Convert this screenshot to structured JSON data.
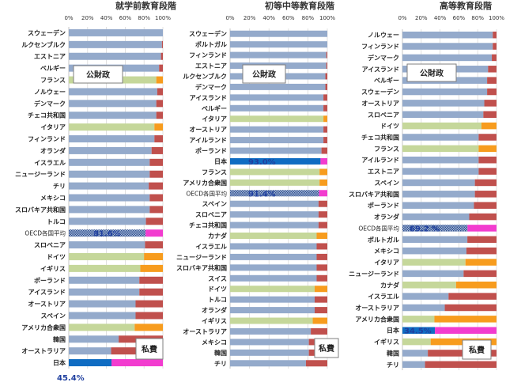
{
  "colors": {
    "public": "#94aacb",
    "private_other": "#c0504d",
    "public_highlight": "#c5d79a",
    "private_highlight": "#f79c1e",
    "japan_public": "#0f6cc2",
    "japan_private": "#f23ccf",
    "oecd_public": "#5f7fae",
    "oecd_private": "#f23ccf"
  },
  "chart_data": [
    {
      "type": "bar",
      "orientation": "horizontal-stacked",
      "title": "就学前教育段階",
      "xlim": [
        0,
        100
      ],
      "xticks": [
        "0%",
        "20%",
        "40%",
        "60%",
        "80%",
        "100%"
      ],
      "legend": {
        "public_label": "公財政",
        "private_label": "私費"
      },
      "categories": [
        "スウェーデン",
        "ルクセンブルク",
        "エストニア",
        "ベルギー",
        "フランス",
        "ノルウェー",
        "デンマーク",
        "チェコ共和国",
        "イタリア",
        "フィンランド",
        "オランダ",
        "イスラエル",
        "ニュージーランド",
        "チリ",
        "メキシコ",
        "スロバキア共和国",
        "トルコ",
        "OECD各国平均",
        "スロベニア",
        "ドイツ",
        "イギリス",
        "ポーランド",
        "アイスランド",
        "オーストリア",
        "スペイン",
        "アメリカ合衆国",
        "韓国",
        "オーストラリア",
        "日本"
      ],
      "highlight": [
        "normal",
        "normal",
        "normal",
        "normal",
        "green",
        "normal",
        "normal",
        "normal",
        "green",
        "normal",
        "normal",
        "normal",
        "normal",
        "normal",
        "normal",
        "normal",
        "normal",
        "oecd",
        "normal",
        "green",
        "green",
        "normal",
        "normal",
        "normal",
        "normal",
        "green",
        "normal",
        "normal",
        "japan"
      ],
      "series": [
        {
          "name": "公財政",
          "values": [
            100,
            99,
            98,
            96,
            93,
            94,
            93,
            93,
            91,
            91,
            88,
            86,
            86,
            85,
            86,
            86,
            82,
            81.6,
            81,
            80,
            76,
            75,
            75,
            71,
            71,
            70,
            53,
            45,
            45.4
          ]
        },
        {
          "name": "私費",
          "values": [
            0,
            1,
            2,
            4,
            7,
            6,
            7,
            7,
            9,
            9,
            12,
            14,
            14,
            15,
            14,
            14,
            18,
            18.4,
            19,
            20,
            24,
            25,
            25,
            29,
            29,
            30,
            47,
            55,
            54.6
          ]
        }
      ],
      "annotations": {
        "oecd": "81.6%",
        "japan": "45.4%"
      }
    },
    {
      "type": "bar",
      "orientation": "horizontal-stacked",
      "title": "初等中等教育段階",
      "xlim": [
        0,
        100
      ],
      "xticks": [
        "0%",
        "20%",
        "40%",
        "60%",
        "80%",
        "100%"
      ],
      "legend": {
        "public_label": "公財政",
        "private_label": "私費"
      },
      "categories": [
        "スウェーデン",
        "ポルトガル",
        "フィンランド",
        "エストニア",
        "ルクセンブルク",
        "デンマーク",
        "アイスランド",
        "ベルギー",
        "イタリア",
        "オーストリア",
        "アイルランド",
        "ポーランド",
        "日本",
        "フランス",
        "アメリカ合衆国",
        "OECD各国平均",
        "スペイン",
        "スロベニア",
        "チェコ共和国",
        "カナダ",
        "イスラエル",
        "ニュージーランド",
        "スロバキア共和国",
        "スイス",
        "ドイツ",
        "トルコ",
        "オランダ",
        "イギリス",
        "オーストラリア",
        "メキシコ",
        "韓国",
        "チリ"
      ],
      "highlight": [
        "normal",
        "normal",
        "normal",
        "normal",
        "normal",
        "normal",
        "normal",
        "normal",
        "green",
        "normal",
        "normal",
        "normal",
        "japan",
        "green",
        "green",
        "oecd",
        "normal",
        "normal",
        "normal",
        "green",
        "normal",
        "normal",
        "normal",
        "normal",
        "green",
        "normal",
        "normal",
        "green",
        "normal",
        "normal",
        "normal",
        "normal"
      ],
      "series": [
        {
          "name": "公財政",
          "values": [
            100,
            100,
            99,
            99,
            98,
            98,
            96,
            96,
            96,
            96,
            96,
            94,
            93.0,
            92,
            92,
            91.4,
            91,
            91,
            91,
            89,
            89,
            89,
            89,
            89,
            87,
            87,
            87,
            85,
            83,
            81,
            81,
            78
          ]
        },
        {
          "name": "私費",
          "values": [
            0,
            0,
            1,
            1,
            2,
            2,
            4,
            4,
            4,
            4,
            4,
            6,
            7.0,
            8,
            8,
            8.6,
            9,
            9,
            9,
            11,
            11,
            11,
            11,
            11,
            13,
            13,
            13,
            15,
            17,
            19,
            19,
            22
          ]
        }
      ],
      "annotations": {
        "oecd": "91.4%",
        "japan": "93.0%"
      }
    },
    {
      "type": "bar",
      "orientation": "horizontal-stacked",
      "title": "高等教育段階",
      "xlim": [
        0,
        100
      ],
      "xticks": [
        "0%",
        "20%",
        "40%",
        "60%",
        "80%",
        "100%"
      ],
      "legend": {
        "public_label": "公財政",
        "private_label": "私費"
      },
      "categories": [
        "ノルウェー",
        "フィンランド",
        "デンマーク",
        "アイスランド",
        "ベルギー",
        "スウェーデン",
        "オーストリア",
        "スロベニア",
        "ドイツ",
        "チェコ共和国",
        "フランス",
        "アイルランド",
        "エストニア",
        "スペイン",
        "スロバキア共和国",
        "ポーランド",
        "オランダ",
        "OECD各国平均",
        "ポルトガル",
        "メキシコ",
        "イタリア",
        "ニュージーランド",
        "カナダ",
        "イスラエル",
        "オーストラリア",
        "アメリカ合衆国",
        "日本",
        "イギリス",
        "韓国",
        "チリ"
      ],
      "highlight": [
        "normal",
        "normal",
        "normal",
        "normal",
        "normal",
        "normal",
        "normal",
        "normal",
        "green",
        "normal",
        "green",
        "normal",
        "normal",
        "normal",
        "normal",
        "normal",
        "normal",
        "oecd",
        "normal",
        "normal",
        "green",
        "normal",
        "green",
        "normal",
        "normal",
        "green",
        "japan",
        "green",
        "normal",
        "normal"
      ],
      "series": [
        {
          "name": "公財政",
          "values": [
            96,
            96,
            95,
            91,
            90,
            90,
            87,
            86,
            84,
            81,
            81,
            81,
            81,
            77,
            77,
            76,
            71,
            69.2,
            69,
            68,
            67,
            65,
            57,
            49,
            45,
            34,
            34.5,
            30,
            27,
            24
          ]
        },
        {
          "name": "私費",
          "values": [
            4,
            4,
            5,
            9,
            10,
            10,
            13,
            14,
            16,
            19,
            19,
            19,
            19,
            23,
            23,
            24,
            29,
            30.8,
            31,
            32,
            33,
            35,
            43,
            51,
            55,
            66,
            65.5,
            70,
            73,
            76
          ]
        }
      ],
      "annotations": {
        "oecd": "69.2 %",
        "japan": "34.5%"
      }
    }
  ]
}
